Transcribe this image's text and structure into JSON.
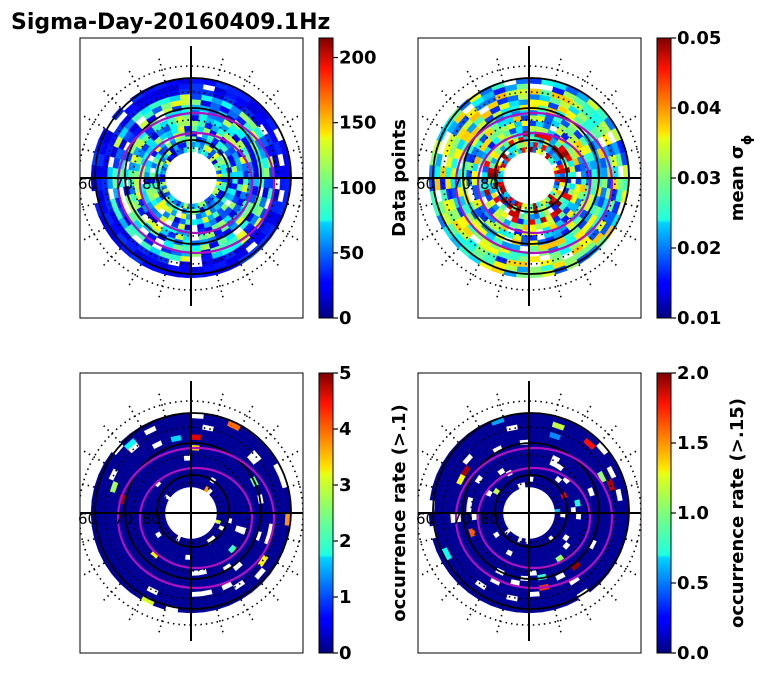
{
  "title": "Sigma-Day-20160409.1Hz",
  "chart_data": [
    {
      "type": "heatmap",
      "projection": "polar",
      "colormap": "jet",
      "lat_labels": [
        "60",
        "70",
        "80"
      ],
      "colorbar": {
        "label": "Data points",
        "range": [
          0,
          215
        ],
        "ticks": [
          0,
          50,
          100,
          150,
          200
        ]
      },
      "dominant_level": 0.35
    },
    {
      "type": "heatmap",
      "projection": "polar",
      "colormap": "jet",
      "lat_labels": [
        "60",
        "70",
        "80"
      ],
      "colorbar": {
        "label": "mean σ",
        "label_subscript": "ϕ",
        "range": [
          0.01,
          0.05
        ],
        "ticks": [
          0.01,
          0.02,
          0.03,
          0.04,
          0.05
        ]
      },
      "dominant_level": 0.42
    },
    {
      "type": "heatmap",
      "projection": "polar",
      "colormap": "jet",
      "lat_labels": [
        "60",
        "70",
        "80"
      ],
      "colorbar": {
        "label": "occurrence rate (>.1)",
        "range": [
          0,
          5
        ],
        "ticks": [
          0,
          1,
          2,
          3,
          4,
          5
        ]
      },
      "dominant_level": 0.0
    },
    {
      "type": "heatmap",
      "projection": "polar",
      "colormap": "jet",
      "lat_labels": [
        "60",
        "70",
        "80"
      ],
      "colorbar": {
        "label": "occurrence rate (>.15)",
        "range": [
          0,
          2
        ],
        "ticks": [
          "0.0",
          "0.5",
          "1.0",
          "1.5",
          "2.0"
        ]
      },
      "dominant_level": 0.0
    }
  ],
  "colors": {
    "oval": "#b010c0",
    "grid": "#000000",
    "axes": "#000000"
  }
}
